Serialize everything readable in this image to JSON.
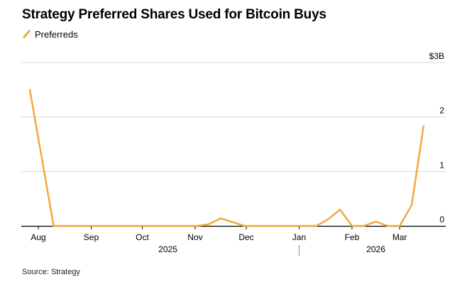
{
  "title": "Strategy Preferred Shares Used for Bitcoin Buys",
  "source": "Source: Strategy",
  "colors": {
    "series": "#f5a83b",
    "grid": "#d8d8d8",
    "axis": "#000000",
    "text": "#000000"
  },
  "chart_data": {
    "type": "line",
    "title": "Strategy Preferred Shares Used for Bitcoin Buys",
    "xlabel": "",
    "ylabel": "",
    "y_axis_position": "right",
    "ylim": [
      0,
      3
    ],
    "y_ticks": [
      {
        "value": 0,
        "label": "0"
      },
      {
        "value": 1,
        "label": "1"
      },
      {
        "value": 2,
        "label": "2"
      },
      {
        "value": 3,
        "label": "$3B"
      }
    ],
    "x_ticks": [
      {
        "date": "2025-08-01",
        "label": "Aug"
      },
      {
        "date": "2025-09-01",
        "label": "Sep"
      },
      {
        "date": "2025-10-01",
        "label": "Oct"
      },
      {
        "date": "2025-11-01",
        "label": "Nov"
      },
      {
        "date": "2025-12-01",
        "label": "Dec"
      },
      {
        "date": "2026-01-01",
        "label": "Jan"
      },
      {
        "date": "2026-02-01",
        "label": "Feb"
      },
      {
        "date": "2026-03-01",
        "label": "Mar"
      }
    ],
    "year_labels": [
      {
        "date": "2025-10-16",
        "label": "2025"
      },
      {
        "date": "2026-02-15",
        "label": "2026"
      }
    ],
    "year_divider": "2026-01-01",
    "legend": {
      "position": "top-left",
      "entries": [
        "Preferreds"
      ]
    },
    "grid": true,
    "series": [
      {
        "name": "Preferreds",
        "x": [
          "2025-07-27",
          "2025-08-10",
          "2025-08-24",
          "2025-09-07",
          "2025-09-21",
          "2025-10-05",
          "2025-10-19",
          "2025-11-02",
          "2025-11-09",
          "2025-11-16",
          "2025-11-30",
          "2025-12-14",
          "2025-12-28",
          "2026-01-11",
          "2026-01-18",
          "2026-01-25",
          "2026-02-01",
          "2026-02-08",
          "2026-02-15",
          "2026-02-22",
          "2026-03-01",
          "2026-03-08",
          "2026-03-15"
        ],
        "values": [
          2.5,
          0.0,
          0.0,
          0.0,
          0.0,
          0.0,
          0.0,
          0.0,
          0.03,
          0.14,
          0.0,
          0.0,
          0.0,
          0.0,
          0.12,
          0.3,
          0.0,
          0.0,
          0.08,
          0.0,
          0.0,
          0.38,
          1.83
        ]
      }
    ]
  }
}
